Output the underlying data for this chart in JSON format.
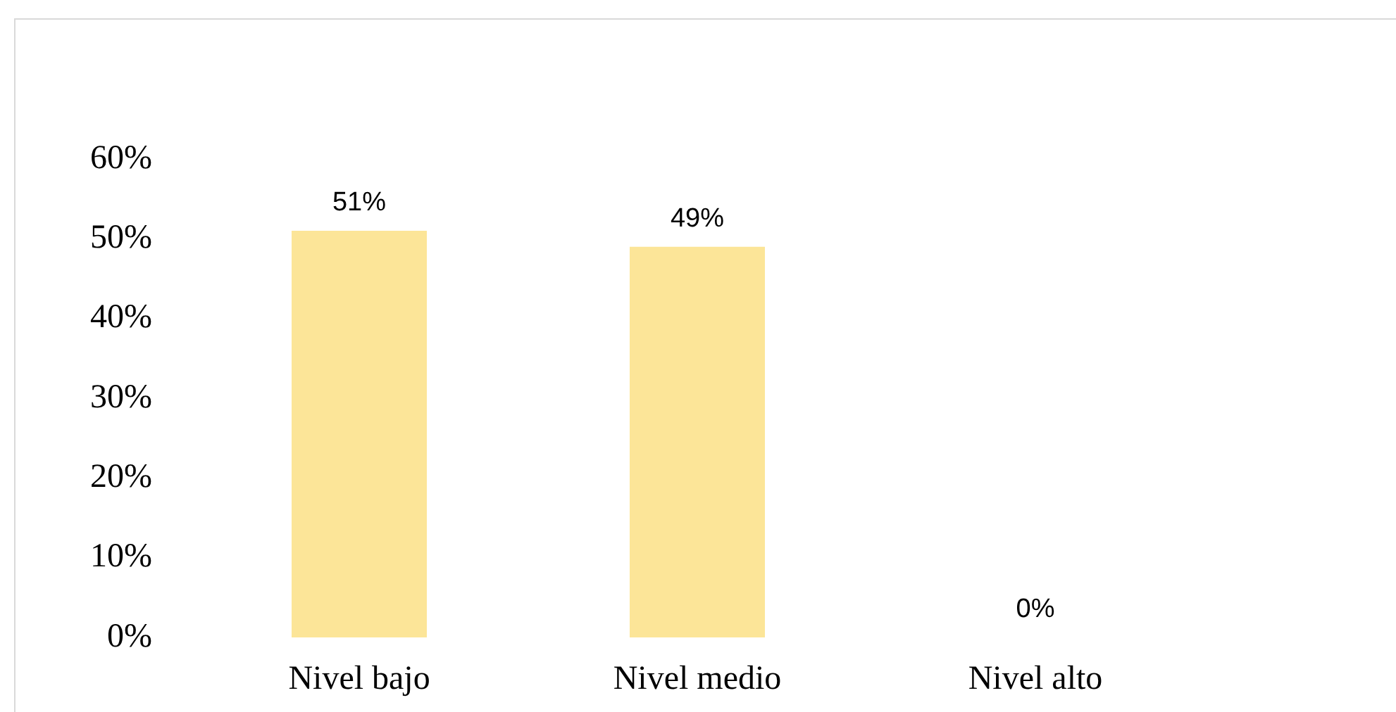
{
  "chart_data": {
    "type": "bar",
    "categories": [
      "Nivel bajo",
      "Nivel medio",
      "Nivel alto"
    ],
    "values": [
      51,
      49,
      0
    ],
    "color": "#fce598",
    "value_labels": [
      "51%",
      "49%",
      "0%"
    ],
    "ylim": [
      0,
      60
    ],
    "yticks": [
      {
        "value": 0,
        "label": "0%"
      },
      {
        "value": 10,
        "label": "10%"
      },
      {
        "value": 20,
        "label": "20%"
      },
      {
        "value": 30,
        "label": "30%"
      },
      {
        "value": 40,
        "label": "40%"
      },
      {
        "value": 50,
        "label": "50%"
      },
      {
        "value": 60,
        "label": "60%"
      }
    ]
  }
}
